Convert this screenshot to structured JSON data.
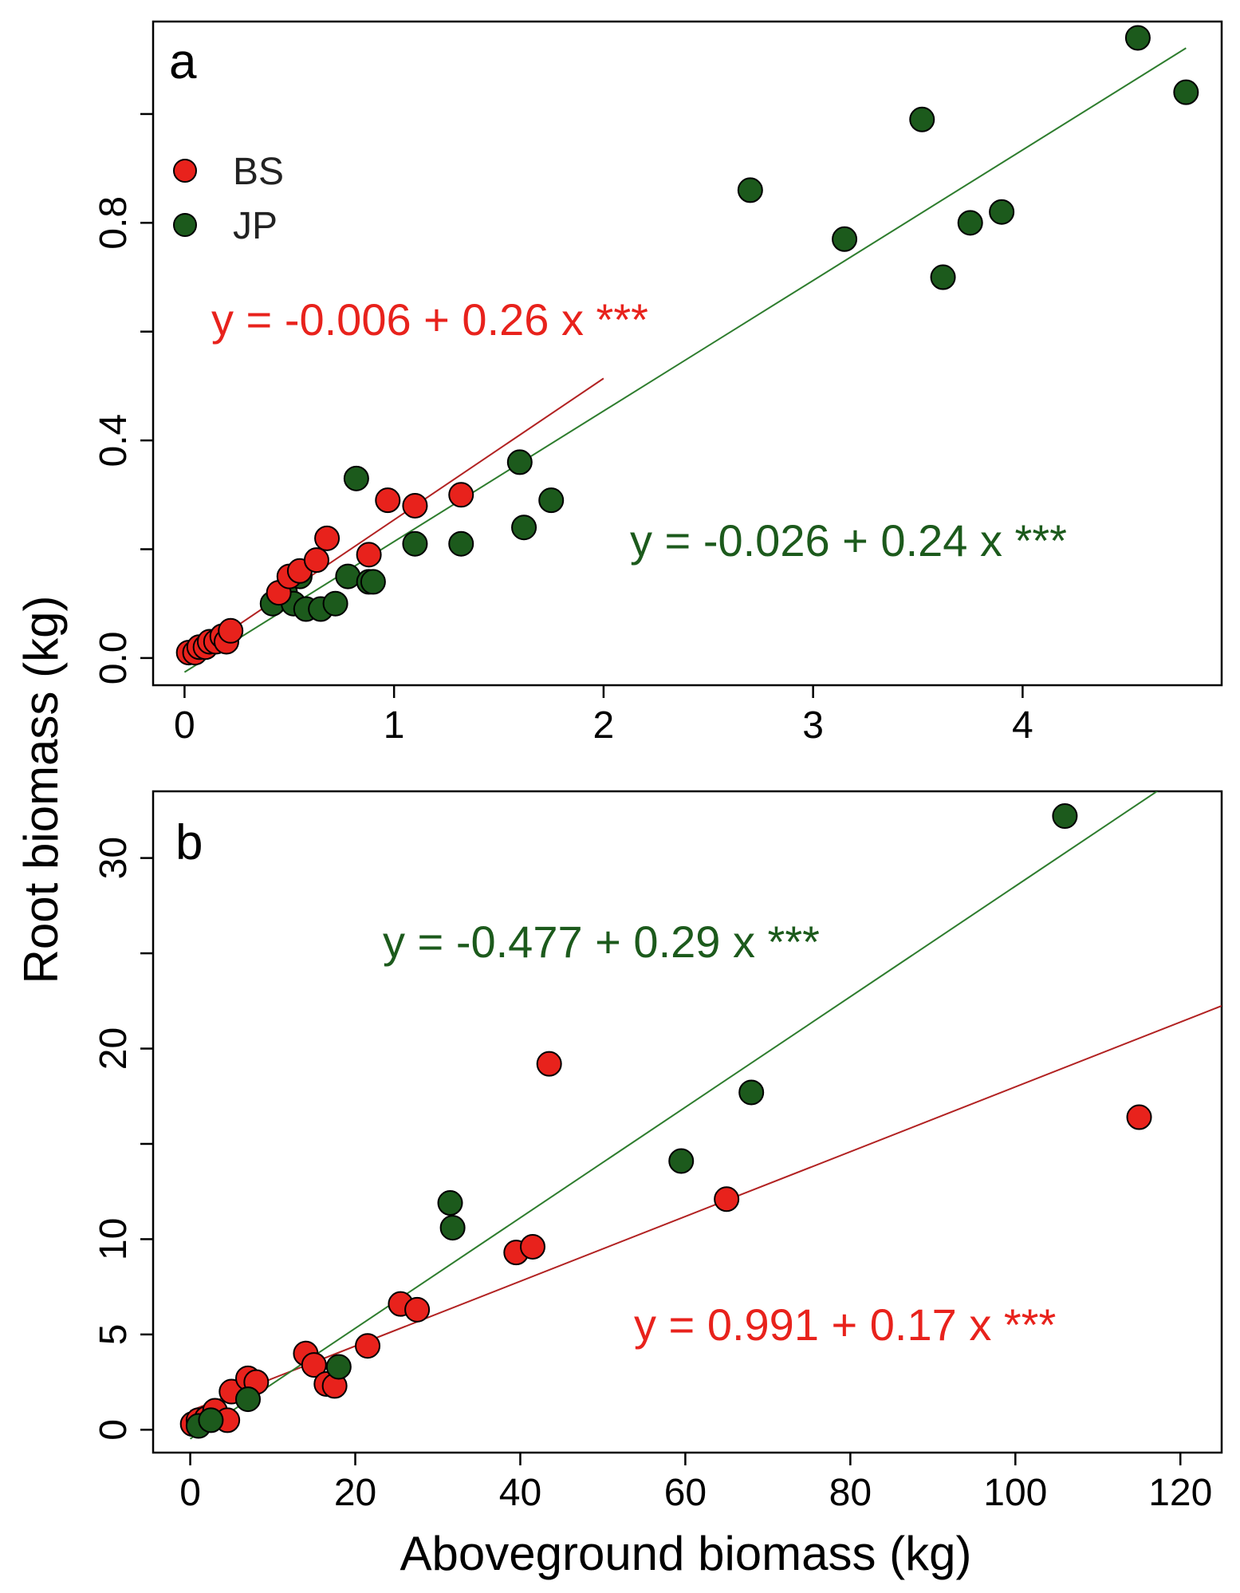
{
  "chart_data": [
    {
      "type": "scatter",
      "panel_label": "a",
      "xlabel": "Aboveground biomass (kg)",
      "ylabel": "Root biomass (kg)",
      "xlim": [
        -0.15,
        4.95
      ],
      "ylim": [
        -0.05,
        1.17
      ],
      "xticks": [
        0,
        1,
        2,
        3,
        4
      ],
      "xtick_labels": [
        "0",
        "1",
        "2",
        "3",
        "4"
      ],
      "yticks": [
        0.0,
        0.2,
        0.4,
        0.6,
        0.8,
        1.0
      ],
      "ytick_labels": [
        "0.0",
        "",
        "0.4",
        "",
        "0.8",
        ""
      ],
      "legend": {
        "position": "top-left",
        "entries": [
          {
            "label": "BS",
            "color": "#e8221c"
          },
          {
            "label": "JP",
            "color": "#1c5a1c"
          }
        ]
      },
      "series": [
        {
          "name": "BS",
          "color": "#e8221c",
          "line_color": "#b22222",
          "fit": {
            "intercept": -0.006,
            "slope": 0.26,
            "x_range": [
              0,
              2.0
            ]
          },
          "equation": "y = -0.006 + 0.26 x ***",
          "points": [
            [
              0.02,
              0.01
            ],
            [
              0.05,
              0.01
            ],
            [
              0.07,
              0.02
            ],
            [
              0.1,
              0.02
            ],
            [
              0.12,
              0.03
            ],
            [
              0.15,
              0.03
            ],
            [
              0.18,
              0.04
            ],
            [
              0.2,
              0.03
            ],
            [
              0.22,
              0.05
            ],
            [
              0.45,
              0.12
            ],
            [
              0.5,
              0.15
            ],
            [
              0.55,
              0.16
            ],
            [
              0.63,
              0.18
            ],
            [
              0.68,
              0.22
            ],
            [
              0.88,
              0.19
            ],
            [
              0.97,
              0.29
            ],
            [
              1.1,
              0.28
            ],
            [
              1.32,
              0.3
            ]
          ]
        },
        {
          "name": "JP",
          "color": "#1c5a1c",
          "line_color": "#2e7d2e",
          "fit": {
            "intercept": -0.026,
            "slope": 0.24,
            "x_range": [
              0,
              4.78
            ]
          },
          "equation": "y = -0.026 + 0.24 x ***",
          "points": [
            [
              0.42,
              0.1
            ],
            [
              0.48,
              0.12
            ],
            [
              0.52,
              0.1
            ],
            [
              0.55,
              0.15
            ],
            [
              0.58,
              0.09
            ],
            [
              0.65,
              0.09
            ],
            [
              0.72,
              0.1
            ],
            [
              0.78,
              0.15
            ],
            [
              0.82,
              0.33
            ],
            [
              0.88,
              0.14
            ],
            [
              0.9,
              0.14
            ],
            [
              1.1,
              0.21
            ],
            [
              1.32,
              0.21
            ],
            [
              1.6,
              0.36
            ],
            [
              1.62,
              0.24
            ],
            [
              1.75,
              0.29
            ],
            [
              2.7,
              0.86
            ],
            [
              3.15,
              0.77
            ],
            [
              3.52,
              0.99
            ],
            [
              3.62,
              0.7
            ],
            [
              3.75,
              0.8
            ],
            [
              3.9,
              0.82
            ],
            [
              4.55,
              1.14
            ],
            [
              4.78,
              1.04
            ]
          ]
        }
      ]
    },
    {
      "type": "scatter",
      "panel_label": "b",
      "xlabel": "Aboveground biomass (kg)",
      "ylabel": "Root biomass (kg)",
      "xlim": [
        -4.5,
        125
      ],
      "ylim": [
        -1.2,
        33.5
      ],
      "xticks": [
        0,
        20,
        40,
        60,
        80,
        100,
        120
      ],
      "xtick_labels": [
        "0",
        "20",
        "40",
        "60",
        "80",
        "100",
        "120"
      ],
      "yticks": [
        0,
        5,
        10,
        15,
        20,
        25,
        30
      ],
      "ytick_labels": [
        "0",
        "5",
        "10",
        "",
        "20",
        "",
        "30"
      ],
      "series": [
        {
          "name": "BS",
          "color": "#e8221c",
          "line_color": "#b22222",
          "fit": {
            "intercept": 0.991,
            "slope": 0.17,
            "x_range": [
              0,
              125
            ]
          },
          "equation": "y = 0.991 + 0.17 x ***",
          "points": [
            [
              0.3,
              0.3
            ],
            [
              1.0,
              0.5
            ],
            [
              2.0,
              0.6
            ],
            [
              3.0,
              1.0
            ],
            [
              4.5,
              0.5
            ],
            [
              5.0,
              2.0
            ],
            [
              7.0,
              2.7
            ],
            [
              8.0,
              2.5
            ],
            [
              14.0,
              4.0
            ],
            [
              15.0,
              3.4
            ],
            [
              16.5,
              2.4
            ],
            [
              17.5,
              2.3
            ],
            [
              21.5,
              4.4
            ],
            [
              25.5,
              6.6
            ],
            [
              27.5,
              6.3
            ],
            [
              39.5,
              9.3
            ],
            [
              41.5,
              9.6
            ],
            [
              43.5,
              19.2
            ],
            [
              65.0,
              12.1
            ],
            [
              115.0,
              16.4
            ]
          ]
        },
        {
          "name": "JP",
          "color": "#1c5a1c",
          "line_color": "#2e7d2e",
          "fit": {
            "intercept": -0.477,
            "slope": 0.29,
            "x_range": [
              0,
              125
            ]
          },
          "equation": "y = -0.477 + 0.29 x ***",
          "points": [
            [
              1.0,
              0.2
            ],
            [
              2.5,
              0.5
            ],
            [
              7.0,
              1.6
            ],
            [
              18.0,
              3.3
            ],
            [
              31.5,
              11.9
            ],
            [
              31.8,
              10.6
            ],
            [
              59.5,
              14.1
            ],
            [
              68.0,
              17.7
            ],
            [
              106.0,
              32.2
            ]
          ]
        }
      ]
    }
  ]
}
